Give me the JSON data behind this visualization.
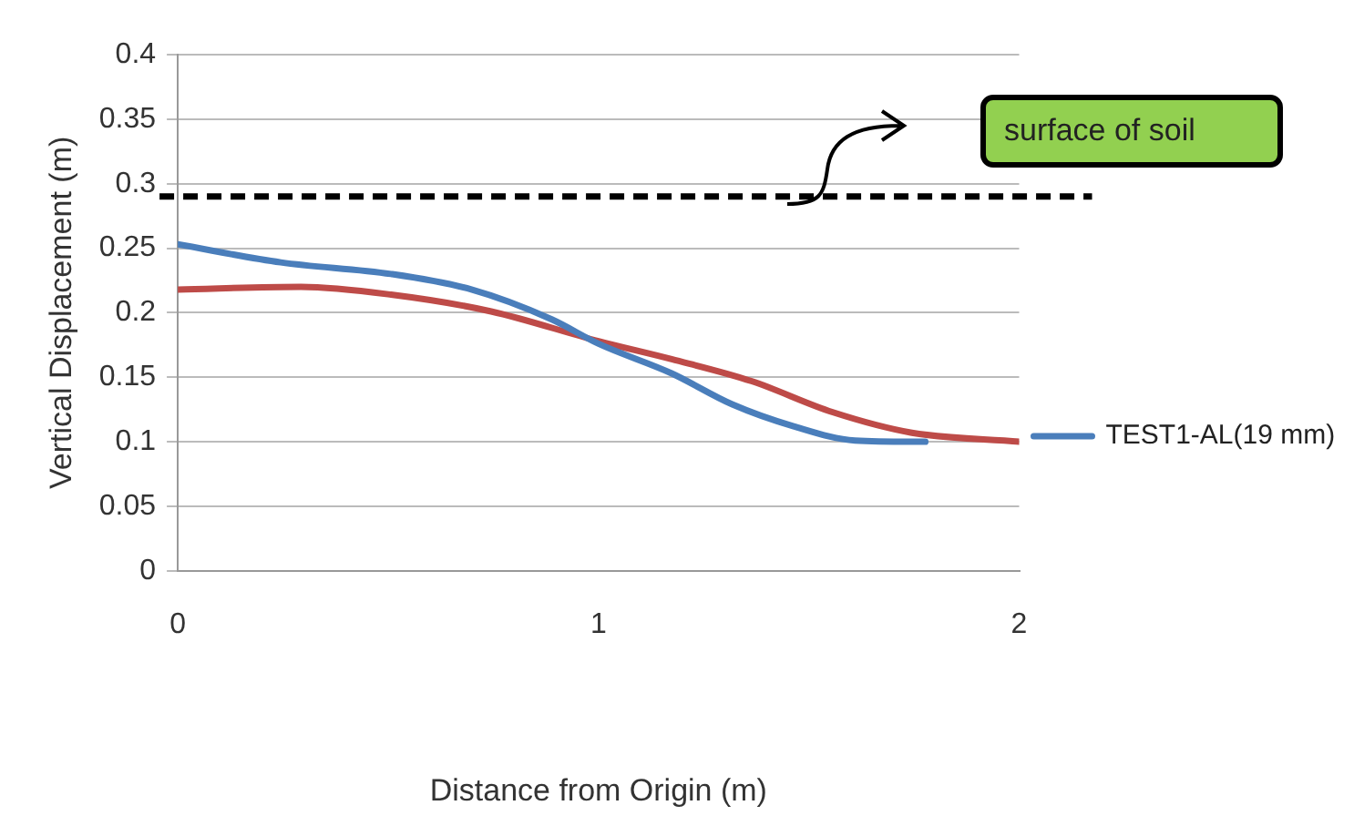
{
  "chart_data": {
    "type": "line",
    "xlabel": "Distance from Origin (m)",
    "ylabel": "Vertical Displacement (m)",
    "xlim": [
      0,
      2
    ],
    "xticks": [
      0,
      1,
      2
    ],
    "ylim": [
      0,
      0.4
    ],
    "yticks": [
      0,
      0.05,
      0.1,
      0.15,
      0.2,
      0.25,
      0.3,
      0.35,
      0.4
    ],
    "grid": "y",
    "legend": "right",
    "marker": "none",
    "line_style": "solid",
    "series": [
      {
        "name": "TEST1-AL(19 mm)",
        "color": "#4a7ebb",
        "x": [
          0,
          0.245,
          0.507,
          0.698,
          0.888,
          1.0,
          1.174,
          1.318,
          1.464,
          1.61,
          1.777
        ],
        "values": [
          0.253,
          0.239,
          0.23,
          0.218,
          0.195,
          0.176,
          0.153,
          0.129,
          0.112,
          0.101,
          0.1
        ]
      },
      {
        "color": "#be4b48",
        "x": [
          0,
          0.293,
          0.507,
          0.745,
          1.0,
          1.174,
          1.364,
          1.556,
          1.745,
          2.0
        ],
        "values": [
          0.218,
          0.22,
          0.214,
          0.201,
          0.178,
          0.164,
          0.147,
          0.123,
          0.107,
          0.1
        ]
      }
    ],
    "ref_lines": [
      {
        "axis": "y",
        "value": 0.29,
        "label": "surface of soil",
        "color": "#000000",
        "line_style": "dashed"
      }
    ]
  }
}
